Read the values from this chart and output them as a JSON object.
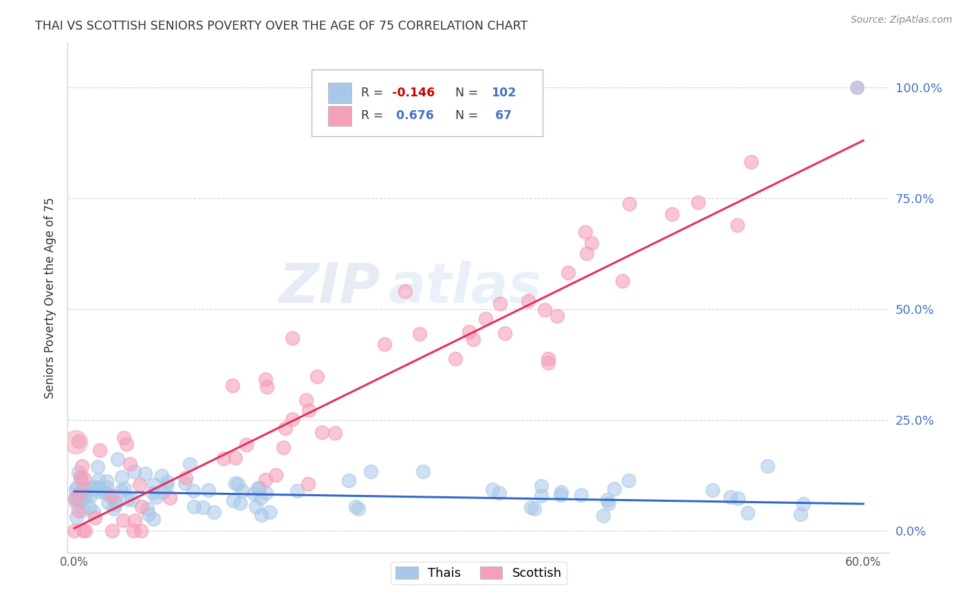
{
  "title": "THAI VS SCOTTISH SENIORS POVERTY OVER THE AGE OF 75 CORRELATION CHART",
  "source": "Source: ZipAtlas.com",
  "ylabel": "Seniors Poverty Over the Age of 75",
  "xlim": [
    -0.005,
    0.62
  ],
  "ylim": [
    -0.05,
    1.1
  ],
  "yticks": [
    0.0,
    0.25,
    0.5,
    0.75,
    1.0
  ],
  "ytick_labels": [
    "0.0%",
    "25.0%",
    "50.0%",
    "75.0%",
    "100.0%"
  ],
  "xticks": [
    0.0,
    0.6
  ],
  "xtick_labels": [
    "0.0%",
    "60.0%"
  ],
  "blue_color": "#a8c8e8",
  "pink_color": "#f4a0b8",
  "blue_line_color": "#3366cc",
  "pink_line_color": "#e8305a",
  "R_blue": -0.146,
  "N_blue": 102,
  "R_pink": 0.676,
  "N_pink": 67,
  "watermark_zip": "ZIP",
  "watermark_atlas": "atlas",
  "legend_labels": [
    "Thais",
    "Scottish"
  ],
  "blue_line_x": [
    0.0,
    0.6
  ],
  "blue_line_y": [
    0.088,
    0.06
  ],
  "pink_line_x": [
    0.0,
    0.6
  ],
  "pink_line_y": [
    0.005,
    0.88
  ]
}
